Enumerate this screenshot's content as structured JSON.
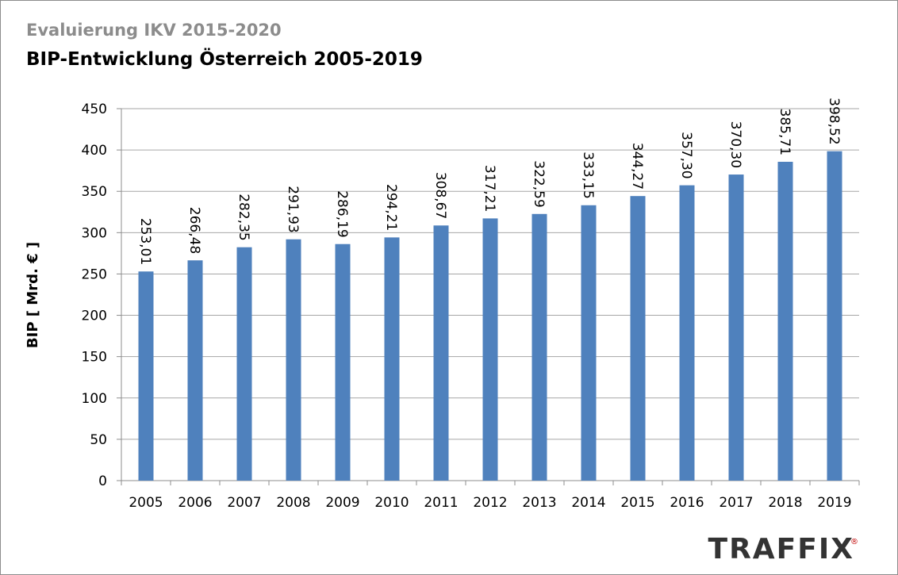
{
  "header": {
    "supertitle": "Evaluierung IKV 2015-2020",
    "logo": "TRAFFIX",
    "logo_mark": "®"
  },
  "chart_data": {
    "type": "bar",
    "title": "BIP-Entwicklung Österreich 2005-2019",
    "y_label": "BIP [ Mrd. € ]",
    "categories": [
      "2005",
      "2006",
      "2007",
      "2008",
      "2009",
      "2010",
      "2011",
      "2012",
      "2013",
      "2014",
      "2015",
      "2016",
      "2017",
      "2018",
      "2019"
    ],
    "values": [
      253.01,
      266.48,
      282.35,
      291.93,
      286.19,
      294.21,
      308.67,
      317.21,
      322.59,
      333.15,
      344.27,
      357.3,
      370.3,
      385.71,
      398.52
    ],
    "value_labels": [
      "253,01",
      "266,48",
      "282,35",
      "291,93",
      "286,19",
      "294,21",
      "308,67",
      "317,21",
      "322,59",
      "333,15",
      "344,27",
      "357,30",
      "370,30",
      "385,71",
      "398,52"
    ],
    "color": "#4f81bd",
    "ylim": [
      0,
      450
    ],
    "yticks": [
      0,
      50,
      100,
      150,
      200,
      250,
      300,
      350,
      400,
      450
    ],
    "grid": true
  }
}
